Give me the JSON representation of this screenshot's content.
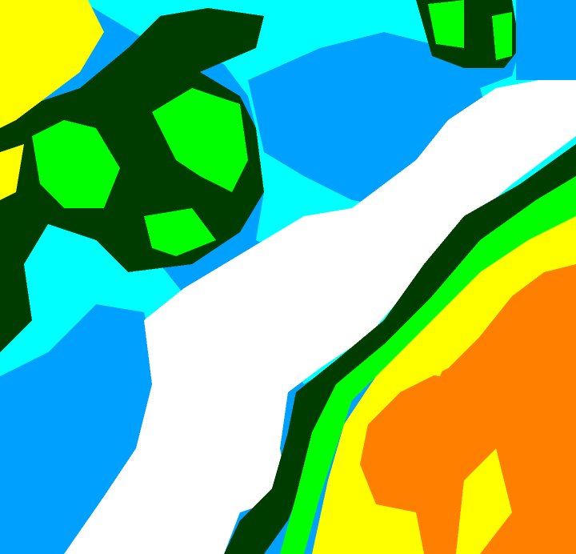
{
  "map": {
    "type": "classified false-color raster",
    "palette": {
      "white": "#ffffff",
      "blue": "#00a0ff",
      "cyan": "#00ffff",
      "dark_green": "#003c00",
      "green": "#00ff00",
      "yellow": "#ffff00",
      "orange": "#ff8000"
    }
  }
}
